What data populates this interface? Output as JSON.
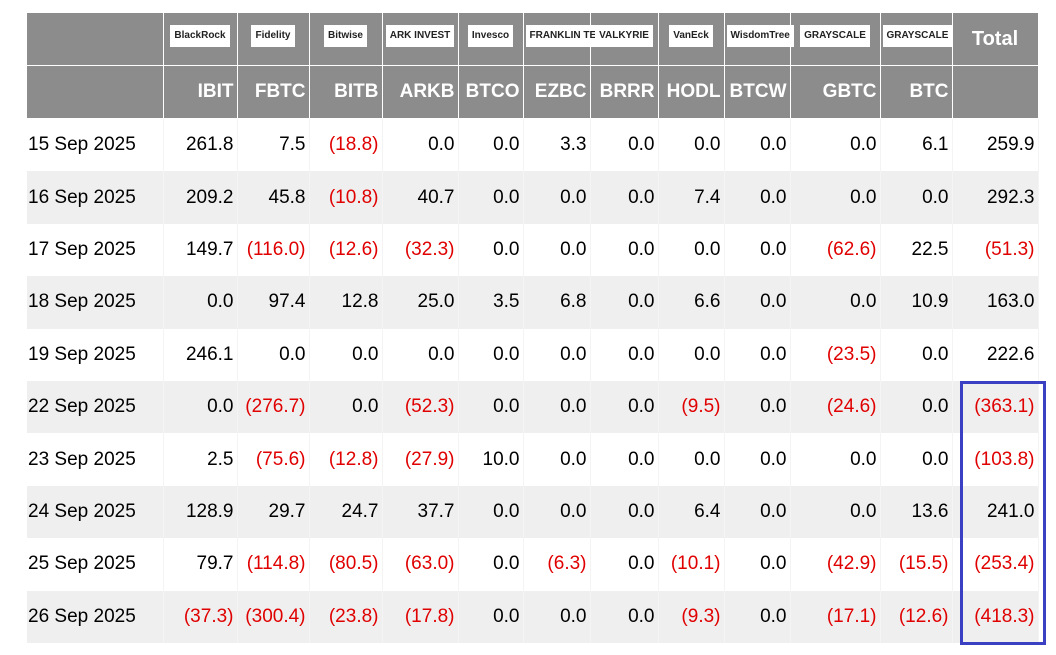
{
  "header": {
    "logos": [
      "BlackRock",
      "Fidelity",
      "Bitwise",
      "ARK INVEST",
      "Invesco",
      "FRANKLIN TEMPLETON",
      "VALKYRIE",
      "VanEck",
      "WisdomTree",
      "GRAYSCALE",
      "GRAYSCALE"
    ],
    "total": "Total",
    "tickers": [
      "IBIT",
      "FBTC",
      "BITB",
      "ARKB",
      "BTCO",
      "EZBC",
      "BRRR",
      "HODL",
      "BTCW",
      "GBTC",
      "BTC"
    ]
  },
  "rows": [
    {
      "date": "15 Sep 2025",
      "values": [
        "261.8",
        "7.5",
        "(18.8)",
        "0.0",
        "0.0",
        "3.3",
        "0.0",
        "0.0",
        "0.0",
        "0.0",
        "6.1",
        "259.9"
      ]
    },
    {
      "date": "16 Sep 2025",
      "values": [
        "209.2",
        "45.8",
        "(10.8)",
        "40.7",
        "0.0",
        "0.0",
        "0.0",
        "7.4",
        "0.0",
        "0.0",
        "0.0",
        "292.3"
      ]
    },
    {
      "date": "17 Sep 2025",
      "values": [
        "149.7",
        "(116.0)",
        "(12.6)",
        "(32.3)",
        "0.0",
        "0.0",
        "0.0",
        "0.0",
        "0.0",
        "(62.6)",
        "22.5",
        "(51.3)"
      ]
    },
    {
      "date": "18 Sep 2025",
      "values": [
        "0.0",
        "97.4",
        "12.8",
        "25.0",
        "3.5",
        "6.8",
        "0.0",
        "6.6",
        "0.0",
        "0.0",
        "10.9",
        "163.0"
      ]
    },
    {
      "date": "19 Sep 2025",
      "values": [
        "246.1",
        "0.0",
        "0.0",
        "0.0",
        "0.0",
        "0.0",
        "0.0",
        "0.0",
        "0.0",
        "(23.5)",
        "0.0",
        "222.6"
      ]
    },
    {
      "date": "22 Sep 2025",
      "values": [
        "0.0",
        "(276.7)",
        "0.0",
        "(52.3)",
        "0.0",
        "0.0",
        "0.0",
        "(9.5)",
        "0.0",
        "(24.6)",
        "0.0",
        "(363.1)"
      ]
    },
    {
      "date": "23 Sep 2025",
      "values": [
        "2.5",
        "(75.6)",
        "(12.8)",
        "(27.9)",
        "10.0",
        "0.0",
        "0.0",
        "0.0",
        "0.0",
        "0.0",
        "0.0",
        "(103.8)"
      ]
    },
    {
      "date": "24 Sep 2025",
      "values": [
        "128.9",
        "29.7",
        "24.7",
        "37.7",
        "0.0",
        "0.0",
        "0.0",
        "6.4",
        "0.0",
        "0.0",
        "13.6",
        "241.0"
      ]
    },
    {
      "date": "25 Sep 2025",
      "values": [
        "79.7",
        "(114.8)",
        "(80.5)",
        "(63.0)",
        "0.0",
        "(6.3)",
        "0.0",
        "(10.1)",
        "0.0",
        "(42.9)",
        "(15.5)",
        "(253.4)"
      ]
    },
    {
      "date": "26 Sep 2025",
      "values": [
        "(37.3)",
        "(300.4)",
        "(23.8)",
        "(17.8)",
        "0.0",
        "0.0",
        "0.0",
        "(9.3)",
        "0.0",
        "(17.1)",
        "(12.6)",
        "(418.3)"
      ]
    }
  ]
}
